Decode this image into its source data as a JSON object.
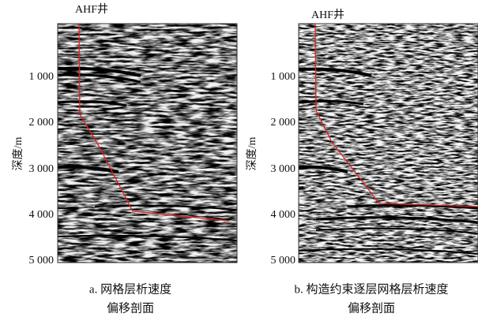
{
  "panels": [
    {
      "well_label": "AHF井",
      "axis_label": "深度/m",
      "yticks": [
        "1 000",
        "2 000",
        "3 000",
        "4 000",
        "5 000"
      ],
      "caption": [
        "a. 网格层析速度",
        "偏移剖面"
      ]
    },
    {
      "well_label": "AHF井",
      "axis_label": "深度/m",
      "yticks": [
        "1 000",
        "2 000",
        "3 000",
        "4 000",
        "5 000"
      ],
      "caption": [
        "b. 构造约束逐层网格层析速度",
        "偏移剖面"
      ]
    }
  ]
}
